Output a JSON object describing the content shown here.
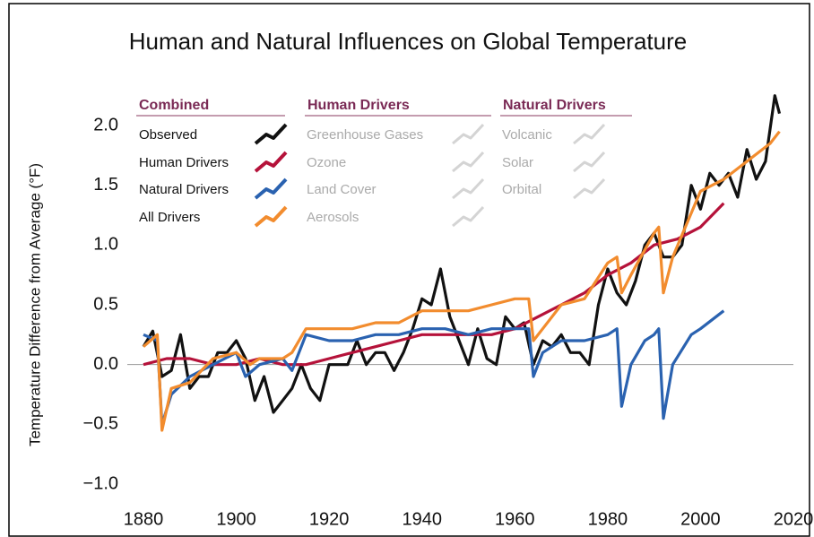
{
  "chart_data": {
    "type": "line",
    "title": "Human and Natural Influences on Global Temperature",
    "y_label": "Temperature Difference from Average (°F)",
    "xlim": [
      1880,
      2020
    ],
    "xticks": [
      1880,
      1900,
      1920,
      1940,
      1960,
      1980,
      2000,
      2020
    ],
    "ylim": [
      -1.0,
      2.3
    ],
    "yticks": [
      {
        "value": -1.0,
        "label": "−1.0"
      },
      {
        "value": -0.5,
        "label": "−0.5"
      },
      {
        "value": 0,
        "label": "0.0"
      },
      {
        "value": 0.5,
        "label": "0.5"
      },
      {
        "value": 1.0,
        "label": "1.0"
      },
      {
        "value": 1.5,
        "label": "1.5"
      },
      {
        "value": 2.0,
        "label": "2.0"
      }
    ],
    "legend_title": "Combined",
    "series": [
      {
        "name": "Observed",
        "color": "#111111",
        "x": [
          1880,
          1882,
          1884,
          1886,
          1888,
          1890,
          1892,
          1894,
          1896,
          1898,
          1900,
          1902,
          1904,
          1906,
          1908,
          1910,
          1912,
          1914,
          1916,
          1918,
          1920,
          1922,
          1924,
          1926,
          1928,
          1930,
          1932,
          1934,
          1936,
          1938,
          1940,
          1942,
          1944,
          1946,
          1948,
          1950,
          1952,
          1954,
          1956,
          1958,
          1960,
          1962,
          1964,
          1966,
          1968,
          1970,
          1972,
          1974,
          1976,
          1978,
          1980,
          1982,
          1984,
          1986,
          1988,
          1990,
          1992,
          1994,
          1996,
          1998,
          2000,
          2002,
          2004,
          2006,
          2008,
          2010,
          2012,
          2014,
          2016,
          2017
        ],
        "values": [
          0.15,
          0.28,
          -0.1,
          -0.05,
          0.25,
          -0.2,
          -0.1,
          -0.1,
          0.1,
          0.1,
          0.2,
          0.05,
          -0.3,
          -0.1,
          -0.4,
          -0.3,
          -0.2,
          0.0,
          -0.2,
          -0.3,
          0.0,
          0.0,
          0.0,
          0.2,
          0.0,
          0.1,
          0.1,
          -0.05,
          0.1,
          0.3,
          0.55,
          0.5,
          0.8,
          0.4,
          0.2,
          0.0,
          0.3,
          0.05,
          0.0,
          0.4,
          0.3,
          0.35,
          0.0,
          0.2,
          0.15,
          0.25,
          0.1,
          0.1,
          0.0,
          0.5,
          0.8,
          0.6,
          0.5,
          0.7,
          1.0,
          1.1,
          0.9,
          0.9,
          1.0,
          1.5,
          1.3,
          1.6,
          1.5,
          1.6,
          1.4,
          1.8,
          1.55,
          1.7,
          2.25,
          2.1
        ]
      },
      {
        "name": "Human Drivers",
        "color": "#b5123a",
        "x": [
          1880,
          1885,
          1890,
          1895,
          1900,
          1905,
          1910,
          1915,
          1920,
          1925,
          1930,
          1935,
          1940,
          1945,
          1950,
          1955,
          1960,
          1965,
          1970,
          1975,
          1980,
          1985,
          1990,
          1995,
          2000,
          2005
        ],
        "values": [
          0.0,
          0.05,
          0.05,
          0.0,
          0.0,
          0.05,
          0.0,
          0.0,
          0.05,
          0.1,
          0.15,
          0.2,
          0.25,
          0.25,
          0.25,
          0.25,
          0.3,
          0.4,
          0.5,
          0.6,
          0.75,
          0.85,
          1.0,
          1.05,
          1.15,
          1.35
        ]
      },
      {
        "name": "Natural Drivers",
        "color": "#2a62b0",
        "x": [
          1880,
          1883,
          1884,
          1886,
          1890,
          1895,
          1900,
          1902,
          1905,
          1910,
          1912,
          1915,
          1920,
          1925,
          1930,
          1935,
          1940,
          1945,
          1950,
          1955,
          1960,
          1963,
          1964,
          1966,
          1970,
          1975,
          1980,
          1982,
          1983,
          1985,
          1988,
          1990,
          1991,
          1992,
          1994,
          1998,
          2000,
          2005
        ],
        "values": [
          0.25,
          0.2,
          -0.5,
          -0.25,
          -0.1,
          0.0,
          0.1,
          -0.1,
          0.0,
          0.05,
          -0.05,
          0.25,
          0.2,
          0.2,
          0.25,
          0.25,
          0.3,
          0.3,
          0.25,
          0.3,
          0.3,
          0.3,
          -0.1,
          0.1,
          0.2,
          0.2,
          0.25,
          0.3,
          -0.35,
          0.0,
          0.2,
          0.25,
          0.3,
          -0.45,
          0.0,
          0.25,
          0.3,
          0.45
        ]
      },
      {
        "name": "All Drivers",
        "color": "#f28c2e",
        "x": [
          1880,
          1883,
          1884,
          1886,
          1890,
          1895,
          1900,
          1903,
          1905,
          1910,
          1912,
          1915,
          1920,
          1925,
          1930,
          1935,
          1940,
          1945,
          1950,
          1955,
          1960,
          1963,
          1964,
          1966,
          1970,
          1975,
          1980,
          1982,
          1983,
          1985,
          1990,
          1991,
          1992,
          1994,
          2000,
          2005,
          2010,
          2015,
          2017
        ],
        "values": [
          0.15,
          0.25,
          -0.55,
          -0.2,
          -0.15,
          0.05,
          0.1,
          0.0,
          0.05,
          0.05,
          0.1,
          0.3,
          0.3,
          0.3,
          0.35,
          0.35,
          0.45,
          0.45,
          0.45,
          0.5,
          0.55,
          0.55,
          0.2,
          0.3,
          0.5,
          0.55,
          0.85,
          0.9,
          0.6,
          0.75,
          1.1,
          1.15,
          0.6,
          0.9,
          1.45,
          1.55,
          1.7,
          1.85,
          1.95
        ]
      }
    ],
    "inactive_color": "#aaaaaa",
    "inactive_groups": [
      {
        "title": "Human Drivers",
        "items": [
          "Greenhouse Gases",
          "Ozone",
          "Land Cover",
          "Aerosols"
        ]
      },
      {
        "title": "Natural Drivers",
        "items": [
          "Volcanic",
          "Solar",
          "Orbital"
        ]
      }
    ]
  }
}
